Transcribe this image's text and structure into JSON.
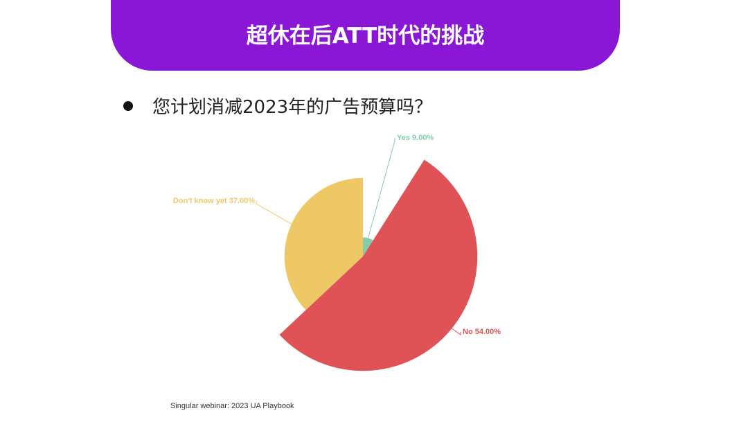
{
  "header": {
    "title": "超休在后ATT时代的挑战"
  },
  "question": "您计划消减2023年的广告预算吗？",
  "chart_data": {
    "type": "pie",
    "categories": [
      "Yes",
      "No",
      "Don't know yet"
    ],
    "values": [
      9,
      54,
      37
    ],
    "value_labels": [
      "9.00%",
      "54.00%",
      "37.00%"
    ],
    "colors": [
      "#86cba8",
      "#df5356",
      "#efc866"
    ]
  },
  "source": "Singular webinar: 2023 UA Playbook"
}
